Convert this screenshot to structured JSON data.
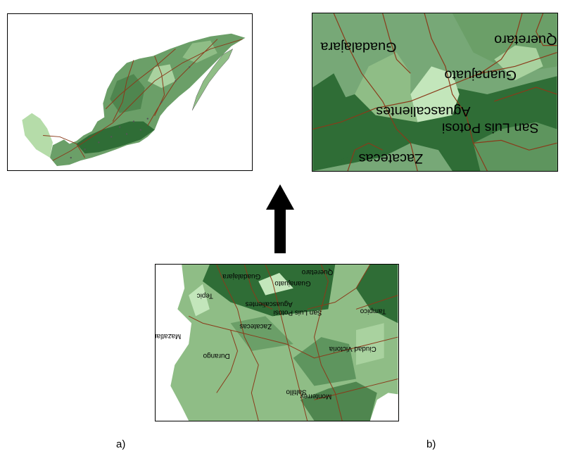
{
  "colors": {
    "region_dark": "#2f6d36",
    "region_mid": "#5e955e",
    "region_light": "#8fbd86",
    "region_pale": "#c3e6bb",
    "road": "#8a3a1a"
  },
  "panel_c": {
    "cities": [
      "Guadalajara",
      "Queretaro",
      "Guanajuato",
      "Tepic",
      "Aguascalientes",
      "San Luis Potosi",
      "Tampico",
      "Zacatecas",
      "Mazatlan",
      "Durango",
      "Ciudad Victoria",
      "Saltillo",
      "Monterrey"
    ]
  },
  "panel_b": {
    "cities": [
      "Guadalajara",
      "Queretaro",
      "Guanajuato",
      "Aguascalientes",
      "San Luis Potosi",
      "Zacatecas"
    ]
  },
  "captions": {
    "a": "a)",
    "b": "b)"
  }
}
